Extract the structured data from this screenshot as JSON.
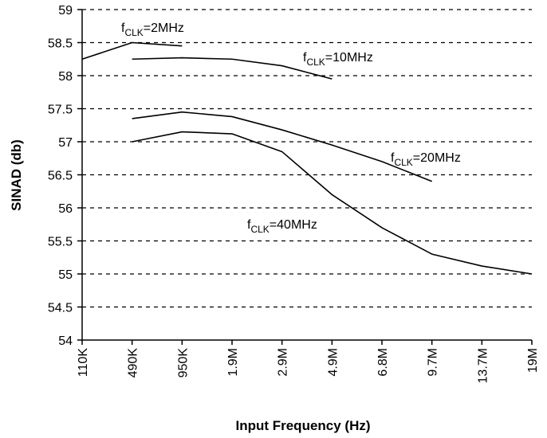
{
  "chart_data": {
    "type": "line",
    "xlabel": "Input Frequency (Hz)",
    "ylabel": "SINAD (db)",
    "categories": [
      "110K",
      "490K",
      "950K",
      "1.9M",
      "2.9M",
      "4.9M",
      "6.8M",
      "9.7M",
      "13.7M",
      "19M"
    ],
    "series": [
      {
        "name": "fCLK=2MHz",
        "color": "#000000",
        "values": [
          58.25,
          58.5,
          58.45,
          null,
          null,
          null,
          null,
          null,
          null,
          null
        ]
      },
      {
        "name": "fCLK=10MHz",
        "color": "#000000",
        "values": [
          null,
          58.25,
          58.27,
          58.25,
          58.15,
          57.95,
          null,
          null,
          null,
          null
        ]
      },
      {
        "name": "fCLK=20MHz",
        "color": "#000000",
        "values": [
          null,
          57.35,
          57.45,
          57.38,
          57.18,
          56.95,
          56.7,
          56.4,
          null,
          null
        ]
      },
      {
        "name": "fCLK=40MHz",
        "color": "#000000",
        "values": [
          null,
          57.0,
          57.15,
          57.12,
          56.85,
          56.2,
          55.7,
          55.3,
          55.12,
          55.0
        ]
      }
    ],
    "annotations": [
      {
        "prefix": "f",
        "sub": "CLK",
        "suffix": "=2MHz"
      },
      {
        "prefix": "f",
        "sub": "CLK",
        "suffix": "=10MHz"
      },
      {
        "prefix": "f",
        "sub": "CLK",
        "suffix": "=20MHz"
      },
      {
        "prefix": "f",
        "sub": "CLK",
        "suffix": "=40MHz"
      }
    ],
    "ylim": [
      54,
      59
    ],
    "yticks": [
      54,
      54.5,
      55,
      55.5,
      56,
      56.5,
      57,
      57.5,
      58,
      58.5,
      59
    ],
    "grid": true
  }
}
